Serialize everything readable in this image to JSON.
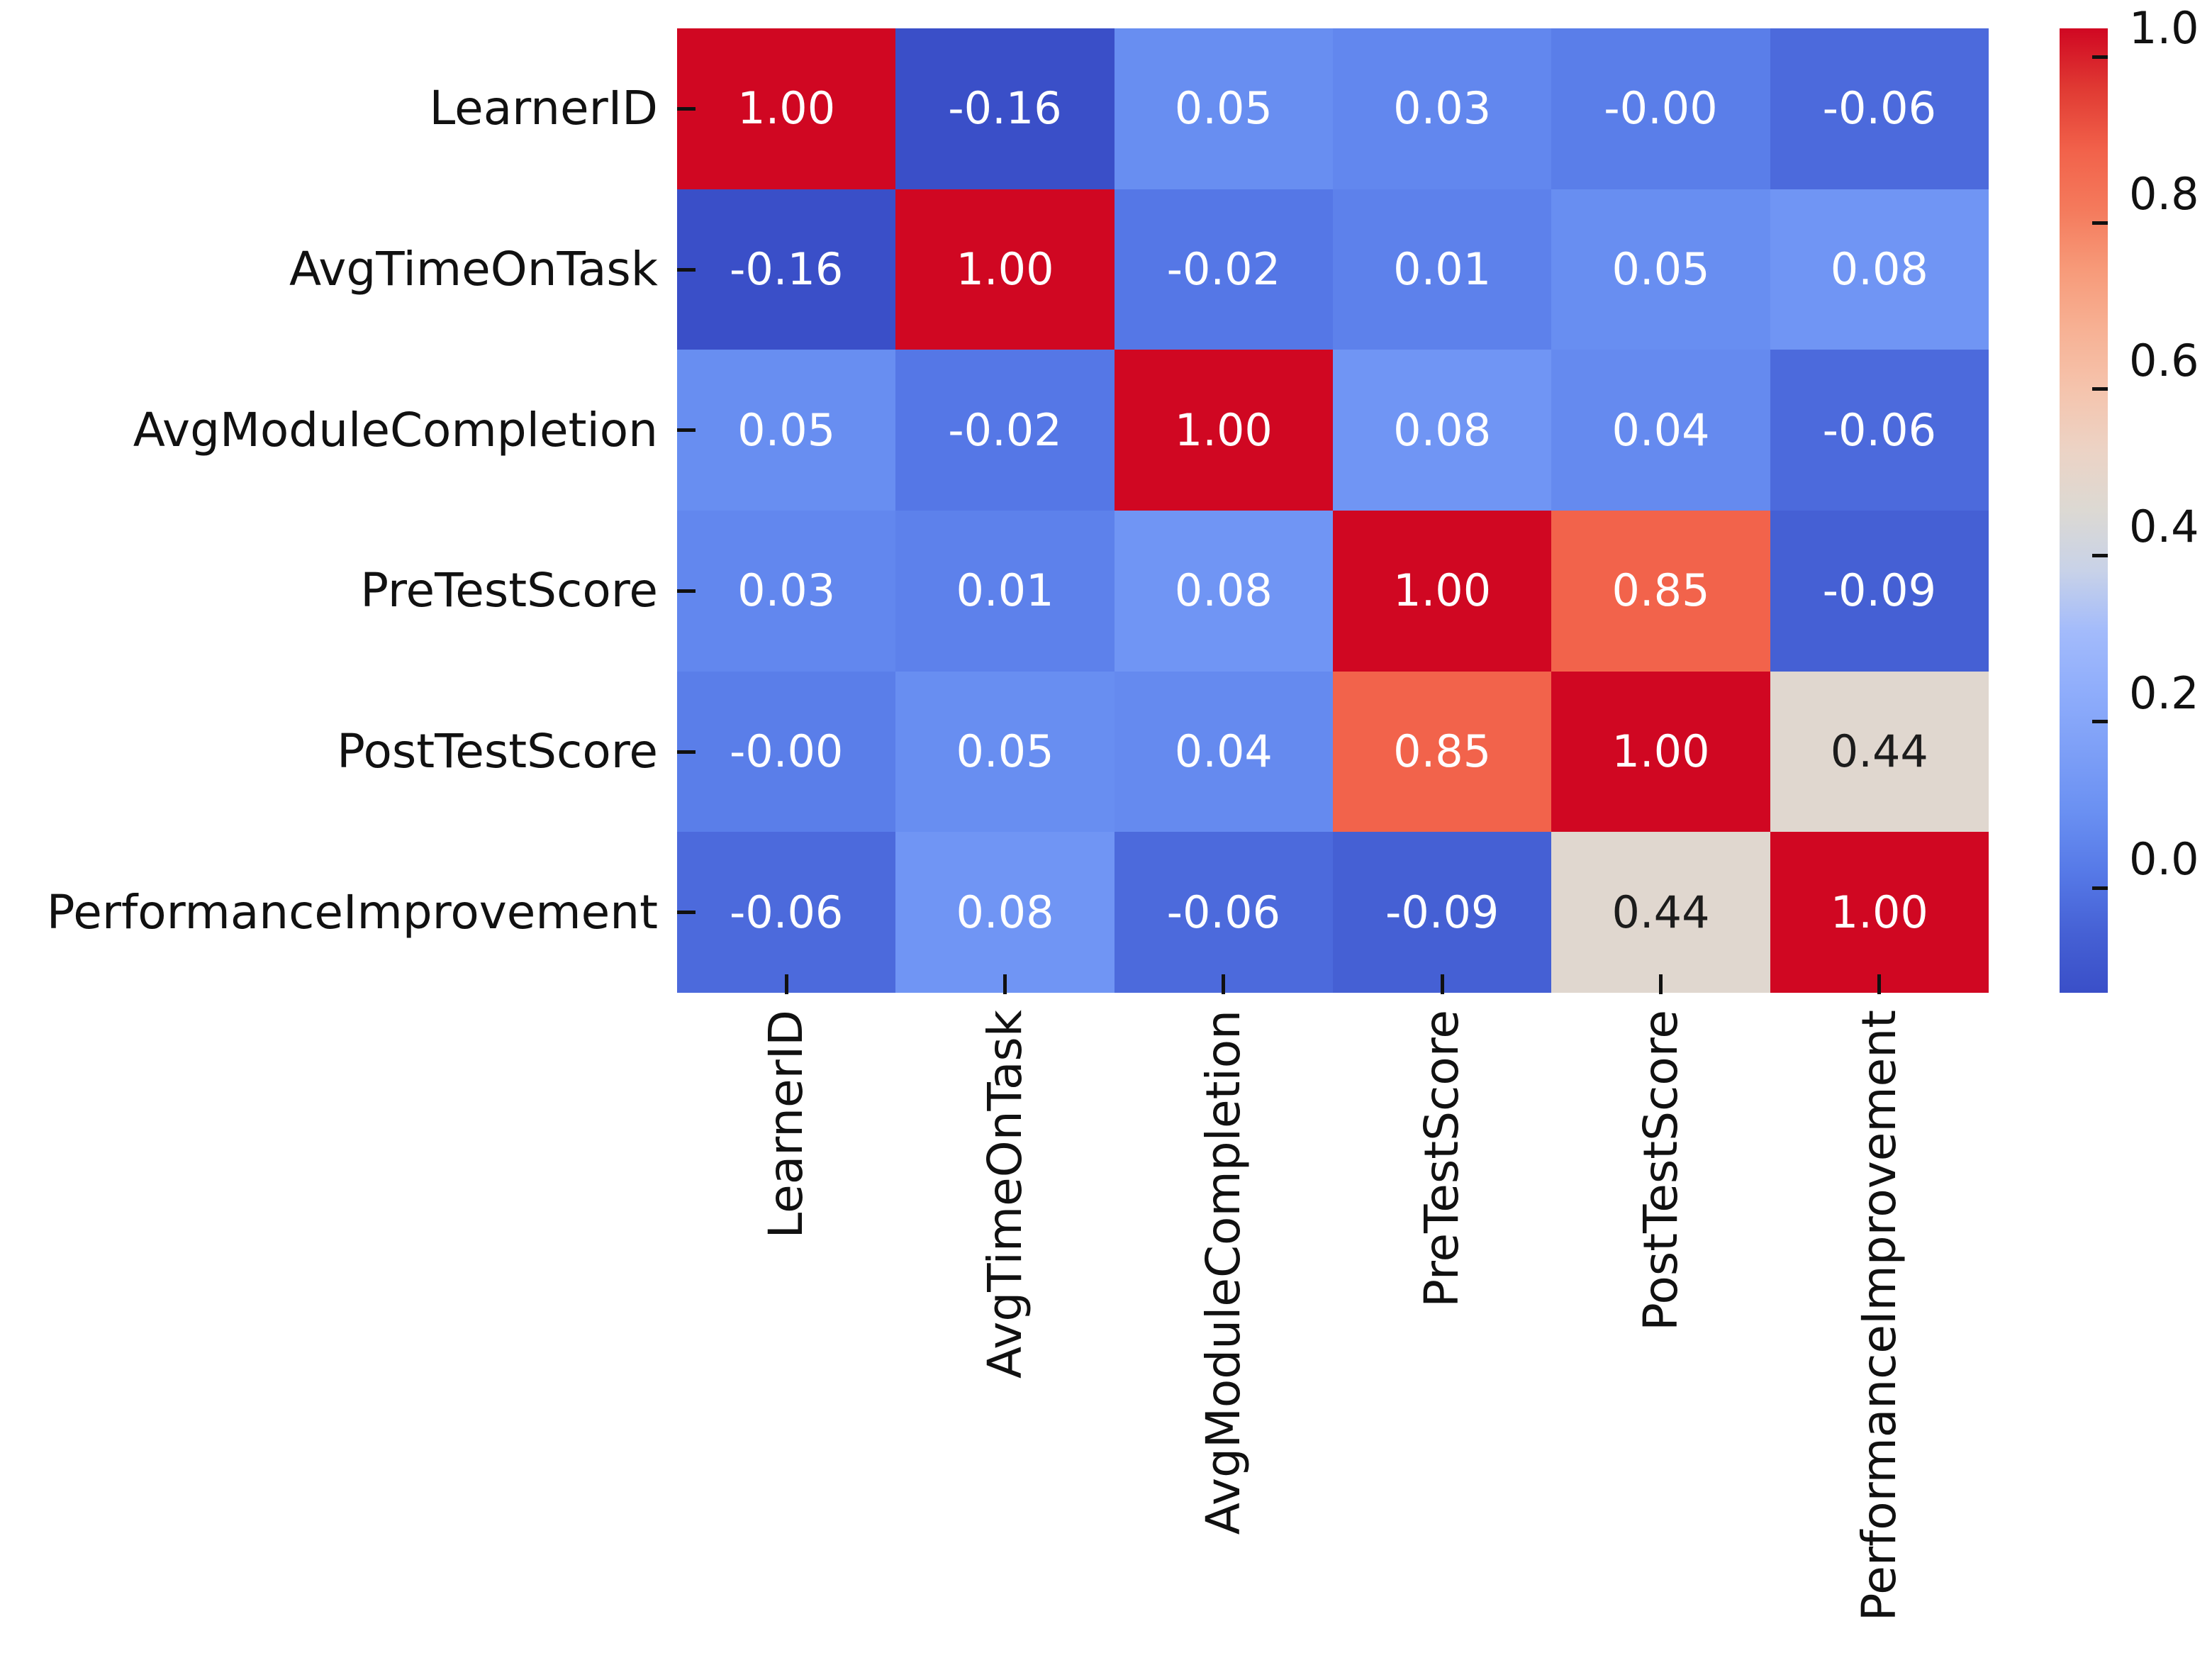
{
  "chart_data": {
    "type": "heatmap",
    "title": "",
    "xlabel": "",
    "ylabel": "",
    "labels": [
      "LearnerID",
      "AvgTimeOnTask",
      "AvgModuleCompletion",
      "PreTestScore",
      "PostTestScore",
      "PerformanceImprovement"
    ],
    "matrix": [
      [
        1.0,
        -0.16,
        0.05,
        0.03,
        -0.0,
        -0.06
      ],
      [
        -0.16,
        1.0,
        -0.02,
        0.01,
        0.05,
        0.08
      ],
      [
        0.05,
        -0.02,
        1.0,
        0.08,
        0.04,
        -0.06
      ],
      [
        0.03,
        0.01,
        0.08,
        1.0,
        0.85,
        -0.09
      ],
      [
        -0.0,
        0.05,
        0.04,
        0.85,
        1.0,
        0.44
      ],
      [
        -0.06,
        0.08,
        -0.06,
        -0.09,
        0.44,
        1.0
      ]
    ],
    "annotations": [
      [
        "1.00",
        "-0.16",
        "0.05",
        "0.03",
        "-0.00",
        "-0.06"
      ],
      [
        "-0.16",
        "1.00",
        "-0.02",
        "0.01",
        "0.05",
        "0.08"
      ],
      [
        "0.05",
        "-0.02",
        "1.00",
        "0.08",
        "0.04",
        "-0.06"
      ],
      [
        "0.03",
        "0.01",
        "0.08",
        "1.00",
        "0.85",
        "-0.09"
      ],
      [
        "-0.00",
        "0.05",
        "0.04",
        "0.85",
        "1.00",
        "0.44"
      ],
      [
        "-0.06",
        "0.08",
        "-0.06",
        "-0.09",
        "0.44",
        "1.00"
      ]
    ],
    "vmin": -0.16,
    "vmax": 1.0,
    "colormap_name": "coolwarm",
    "colormap_anchors": [
      [
        0.0,
        "#3a4fc8"
      ],
      [
        0.06,
        "#4560d4"
      ],
      [
        0.125,
        "#5679e7"
      ],
      [
        0.1875,
        "#6a90f2"
      ],
      [
        0.25,
        "#7d9ff7"
      ],
      [
        0.3125,
        "#8fadfb"
      ],
      [
        0.375,
        "#a3bbfb"
      ],
      [
        0.4375,
        "#c8d2e8"
      ],
      [
        0.5,
        "#dcd9d3"
      ],
      [
        0.5625,
        "#ecd3c5"
      ],
      [
        0.625,
        "#f5c4ad"
      ],
      [
        0.6875,
        "#f7b194"
      ],
      [
        0.75,
        "#f79a79"
      ],
      [
        0.8125,
        "#f47a5c"
      ],
      [
        0.871,
        "#f2634b"
      ],
      [
        0.9375,
        "#e03a33"
      ],
      [
        1.0,
        "#d00722"
      ]
    ],
    "colorbar": {
      "tick_labels": [
        "1.0",
        "0.8",
        "0.6",
        "0.4",
        "0.2",
        "0.0"
      ],
      "tick_values": [
        1.0,
        0.8,
        0.6,
        0.4,
        0.2,
        0.0
      ]
    },
    "annotation_text_light": "#ffffff",
    "annotation_text_dark": "#1c1c1c",
    "axis_text_color": "#111111",
    "background": "#ffffff",
    "grid": false,
    "legend": "colorbar-right"
  }
}
